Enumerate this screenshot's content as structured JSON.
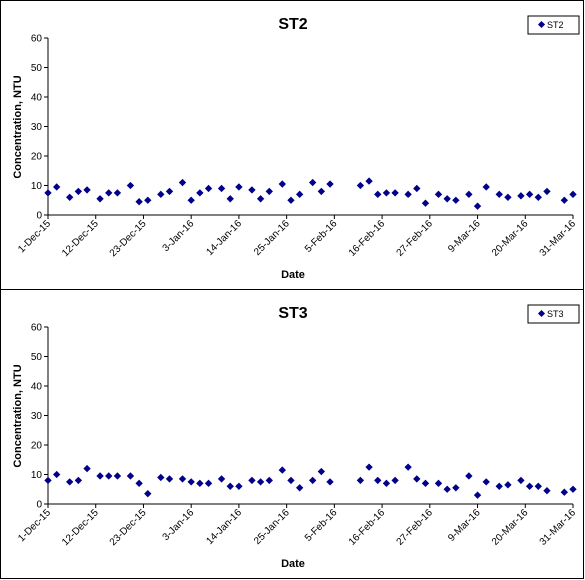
{
  "chart_data": [
    {
      "type": "scatter",
      "title": "ST2",
      "xlabel": "Date",
      "ylabel": "Concentration, NTU",
      "ylim": [
        0,
        60
      ],
      "yticks": [
        0,
        10,
        20,
        30,
        40,
        50,
        60
      ],
      "xlim": [
        "2015-12-01",
        "2016-03-31"
      ],
      "xticks": [
        "1-Dec-15",
        "12-Dec-15",
        "23-Dec-15",
        "3-Jan-16",
        "14-Jan-16",
        "25-Jan-16",
        "5-Feb-16",
        "16-Feb-16",
        "27-Feb-16",
        "9-Mar-16",
        "20-Mar-16",
        "31-Mar-16"
      ],
      "grid": false,
      "legend": "top-right",
      "color": "#00008B",
      "series": [
        {
          "name": "ST2",
          "x": [
            "2015-12-01",
            "2015-12-03",
            "2015-12-06",
            "2015-12-08",
            "2015-12-10",
            "2015-12-13",
            "2015-12-15",
            "2015-12-17",
            "2015-12-20",
            "2015-12-22",
            "2015-12-24",
            "2015-12-27",
            "2015-12-29",
            "2016-01-01",
            "2016-01-03",
            "2016-01-05",
            "2016-01-07",
            "2016-01-10",
            "2016-01-12",
            "2016-01-14",
            "2016-01-17",
            "2016-01-19",
            "2016-01-21",
            "2016-01-24",
            "2016-01-26",
            "2016-01-28",
            "2016-01-31",
            "2016-02-02",
            "2016-02-04",
            "2016-02-11",
            "2016-02-13",
            "2016-02-15",
            "2016-02-17",
            "2016-02-19",
            "2016-02-22",
            "2016-02-24",
            "2016-02-26",
            "2016-02-29",
            "2016-03-02",
            "2016-03-04",
            "2016-03-07",
            "2016-03-09",
            "2016-03-11",
            "2016-03-14",
            "2016-03-16",
            "2016-03-19",
            "2016-03-21",
            "2016-03-23",
            "2016-03-25",
            "2016-03-29",
            "2016-03-31"
          ],
          "y": [
            7.5,
            9.5,
            6,
            8,
            8.5,
            5.5,
            7.5,
            7.5,
            10,
            4.5,
            5,
            7,
            8,
            11,
            5,
            7.5,
            9,
            9,
            5.5,
            9.5,
            8.5,
            5.5,
            8,
            10.5,
            5,
            7,
            11,
            8,
            10.5,
            10,
            11.5,
            7,
            7.5,
            7.5,
            7,
            9,
            4,
            7,
            5.5,
            5,
            7,
            3,
            9.5,
            7,
            6,
            6.5,
            7,
            6,
            8,
            5,
            7
          ]
        }
      ]
    },
    {
      "type": "scatter",
      "title": "ST3",
      "xlabel": "Date",
      "ylabel": "Concentration, NTU",
      "ylim": [
        0,
        60
      ],
      "yticks": [
        0,
        10,
        20,
        30,
        40,
        50,
        60
      ],
      "xlim": [
        "2015-12-01",
        "2016-03-31"
      ],
      "xticks": [
        "1-Dec-15",
        "12-Dec-15",
        "23-Dec-15",
        "3-Jan-16",
        "14-Jan-16",
        "25-Jan-16",
        "5-Feb-16",
        "16-Feb-16",
        "27-Feb-16",
        "9-Mar-16",
        "20-Mar-16",
        "31-Mar-16"
      ],
      "grid": false,
      "legend": "top-right",
      "color": "#00008B",
      "series": [
        {
          "name": "ST3",
          "x": [
            "2015-12-01",
            "2015-12-03",
            "2015-12-06",
            "2015-12-08",
            "2015-12-10",
            "2015-12-13",
            "2015-12-15",
            "2015-12-17",
            "2015-12-20",
            "2015-12-22",
            "2015-12-24",
            "2015-12-27",
            "2015-12-29",
            "2016-01-01",
            "2016-01-03",
            "2016-01-05",
            "2016-01-07",
            "2016-01-10",
            "2016-01-12",
            "2016-01-14",
            "2016-01-17",
            "2016-01-19",
            "2016-01-21",
            "2016-01-24",
            "2016-01-26",
            "2016-01-28",
            "2016-01-31",
            "2016-02-02",
            "2016-02-04",
            "2016-02-11",
            "2016-02-13",
            "2016-02-15",
            "2016-02-17",
            "2016-02-19",
            "2016-02-22",
            "2016-02-24",
            "2016-02-26",
            "2016-02-29",
            "2016-03-02",
            "2016-03-04",
            "2016-03-07",
            "2016-03-09",
            "2016-03-11",
            "2016-03-14",
            "2016-03-16",
            "2016-03-19",
            "2016-03-21",
            "2016-03-23",
            "2016-03-25",
            "2016-03-29",
            "2016-03-31"
          ],
          "y": [
            8,
            10,
            7.5,
            8,
            12,
            9.5,
            9.5,
            9.5,
            9.5,
            7,
            3.5,
            9,
            8.5,
            8.5,
            7.5,
            7,
            7,
            8.5,
            6,
            6,
            8,
            7.5,
            8,
            11.5,
            8,
            5.5,
            8,
            11,
            7.5,
            8,
            12.5,
            8,
            7,
            8,
            12.5,
            8.5,
            7,
            7,
            5,
            5.5,
            9.5,
            3,
            7.5,
            6,
            6.5,
            8,
            6,
            6,
            4.5,
            4,
            5
          ]
        }
      ]
    }
  ]
}
